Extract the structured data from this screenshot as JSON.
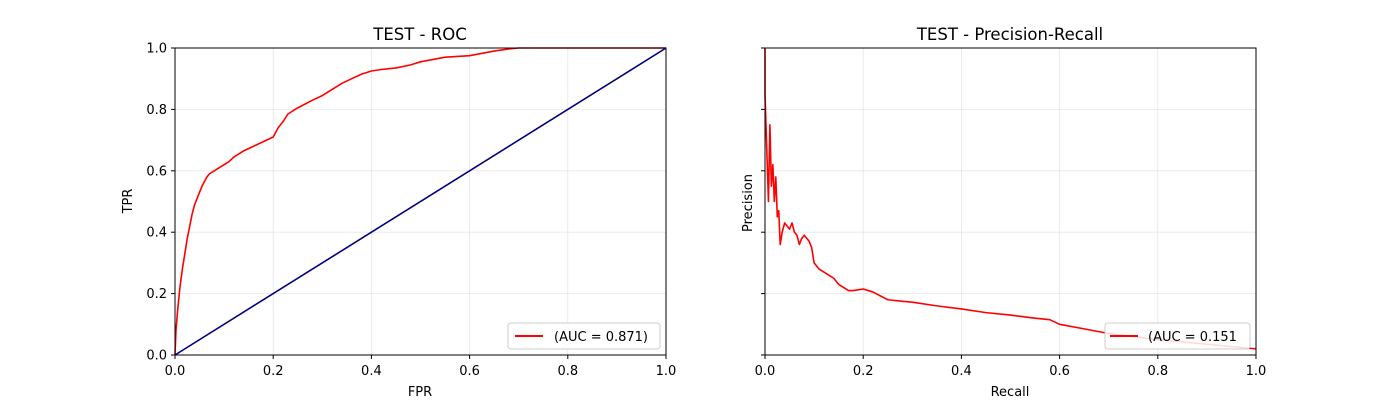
{
  "chart_data": [
    {
      "type": "line",
      "title": "TEST - ROC",
      "xlabel": "FPR",
      "ylabel": "TPR",
      "xlim": [
        0,
        1
      ],
      "ylim": [
        0,
        1
      ],
      "xticks": [
        "0.0",
        "0.2",
        "0.4",
        "0.6",
        "0.8",
        "1.0"
      ],
      "yticks": [
        "0.0",
        "0.2",
        "0.4",
        "0.6",
        "0.8",
        "1.0"
      ],
      "grid": true,
      "legend_position": "lower-right",
      "colors": {
        "curve": "#ff0000",
        "diagonal": "#000080"
      },
      "series": [
        {
          "name": "(AUC = 0.871)",
          "x": [
            0.0,
            0.002,
            0.005,
            0.01,
            0.015,
            0.02,
            0.025,
            0.03,
            0.035,
            0.04,
            0.045,
            0.05,
            0.055,
            0.06,
            0.065,
            0.07,
            0.08,
            0.09,
            0.1,
            0.11,
            0.12,
            0.13,
            0.14,
            0.16,
            0.18,
            0.2,
            0.21,
            0.22,
            0.23,
            0.25,
            0.28,
            0.3,
            0.32,
            0.34,
            0.36,
            0.38,
            0.4,
            0.42,
            0.45,
            0.48,
            0.5,
            0.55,
            0.6,
            0.65,
            0.68,
            0.7,
            0.8,
            0.9,
            1.0
          ],
          "y": [
            0.0,
            0.08,
            0.14,
            0.22,
            0.28,
            0.33,
            0.38,
            0.42,
            0.46,
            0.49,
            0.51,
            0.53,
            0.55,
            0.565,
            0.58,
            0.59,
            0.6,
            0.61,
            0.62,
            0.63,
            0.645,
            0.655,
            0.665,
            0.68,
            0.695,
            0.71,
            0.74,
            0.76,
            0.785,
            0.805,
            0.83,
            0.845,
            0.865,
            0.885,
            0.9,
            0.915,
            0.925,
            0.93,
            0.935,
            0.945,
            0.955,
            0.97,
            0.975,
            0.99,
            0.997,
            1.0,
            1.0,
            1.0,
            1.0
          ]
        },
        {
          "name": "",
          "x": [
            0,
            1
          ],
          "y": [
            0,
            1
          ]
        }
      ]
    },
    {
      "type": "line",
      "title": "TEST - Precision-Recall",
      "xlabel": "Recall",
      "ylabel": "Precision",
      "xlim": [
        0,
        1
      ],
      "ylim": [
        0,
        1
      ],
      "xticks": [
        "0.0",
        "0.2",
        "0.4",
        "0.6",
        "0.8",
        "1.0"
      ],
      "grid": true,
      "legend_position": "lower-right",
      "colors": {
        "curve": "#ff0000"
      },
      "series": [
        {
          "name": "(AUC = 0.151",
          "x": [
            0.0,
            0.0,
            0.005,
            0.007,
            0.01,
            0.013,
            0.016,
            0.019,
            0.022,
            0.025,
            0.028,
            0.031,
            0.035,
            0.04,
            0.045,
            0.05,
            0.055,
            0.06,
            0.065,
            0.07,
            0.075,
            0.08,
            0.085,
            0.09,
            0.095,
            0.1,
            0.11,
            0.12,
            0.13,
            0.14,
            0.15,
            0.16,
            0.17,
            0.18,
            0.2,
            0.22,
            0.25,
            0.28,
            0.3,
            0.35,
            0.4,
            0.45,
            0.5,
            0.55,
            0.58,
            0.6,
            0.65,
            0.7,
            0.75,
            0.8,
            0.9,
            1.0
          ],
          "y": [
            1.0,
            0.85,
            0.6,
            0.5,
            0.75,
            0.55,
            0.62,
            0.5,
            0.58,
            0.45,
            0.47,
            0.36,
            0.4,
            0.43,
            0.42,
            0.41,
            0.43,
            0.4,
            0.39,
            0.36,
            0.38,
            0.39,
            0.38,
            0.37,
            0.35,
            0.3,
            0.28,
            0.27,
            0.26,
            0.25,
            0.23,
            0.22,
            0.21,
            0.21,
            0.215,
            0.205,
            0.18,
            0.175,
            0.172,
            0.16,
            0.15,
            0.138,
            0.13,
            0.12,
            0.115,
            0.1,
            0.085,
            0.07,
            0.06,
            0.05,
            0.035,
            0.02
          ]
        }
      ]
    }
  ]
}
